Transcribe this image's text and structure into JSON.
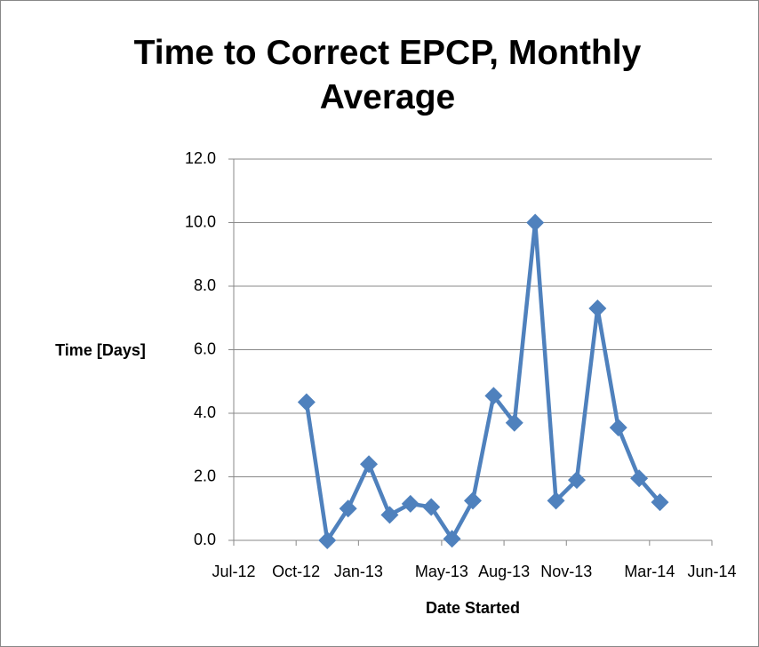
{
  "chart_data": {
    "type": "line",
    "title": "Time to Correct EPCP, Monthly Average",
    "x_label": "Date Started",
    "y_label": "Time [Days]",
    "x": [
      "2012-10",
      "2012-11",
      "2012-12",
      "2013-01",
      "2013-02",
      "2013-03",
      "2013-04",
      "2013-05",
      "2013-06",
      "2013-07",
      "2013-08",
      "2013-09",
      "2013-10",
      "2013-11",
      "2013-12",
      "2014-01",
      "2014-02",
      "2014-03"
    ],
    "series": [
      {
        "name": "Time [Days]",
        "color": "#4f81bd",
        "values": [
          4.35,
          0.0,
          1.0,
          2.4,
          0.8,
          1.15,
          1.05,
          0.05,
          1.25,
          4.55,
          3.7,
          10.0,
          1.25,
          1.9,
          7.3,
          3.55,
          1.95,
          1.2
        ]
      }
    ],
    "xlim": [
      "2012-07",
      "2014-06"
    ],
    "xticks": [
      {
        "value": "2012-07",
        "label": "Jul-12"
      },
      {
        "value": "2012-10",
        "label": "Oct-12"
      },
      {
        "value": "2013-01",
        "label": "Jan-13"
      },
      {
        "value": "2013-05",
        "label": "May-13"
      },
      {
        "value": "2013-08",
        "label": "Aug-13"
      },
      {
        "value": "2013-11",
        "label": "Nov-13"
      },
      {
        "value": "2014-03",
        "label": "Mar-14"
      },
      {
        "value": "2014-06",
        "label": "Jun-14"
      }
    ],
    "ylim": [
      0,
      12
    ],
    "yticks": [
      {
        "value": 0,
        "label": "0.0"
      },
      {
        "value": 2,
        "label": "2.0"
      },
      {
        "value": 4,
        "label": "4.0"
      },
      {
        "value": 6,
        "label": "6.0"
      },
      {
        "value": 8,
        "label": "8.0"
      },
      {
        "value": 10,
        "label": "10.0"
      },
      {
        "value": 12,
        "label": "12.0"
      }
    ],
    "grid": true
  }
}
